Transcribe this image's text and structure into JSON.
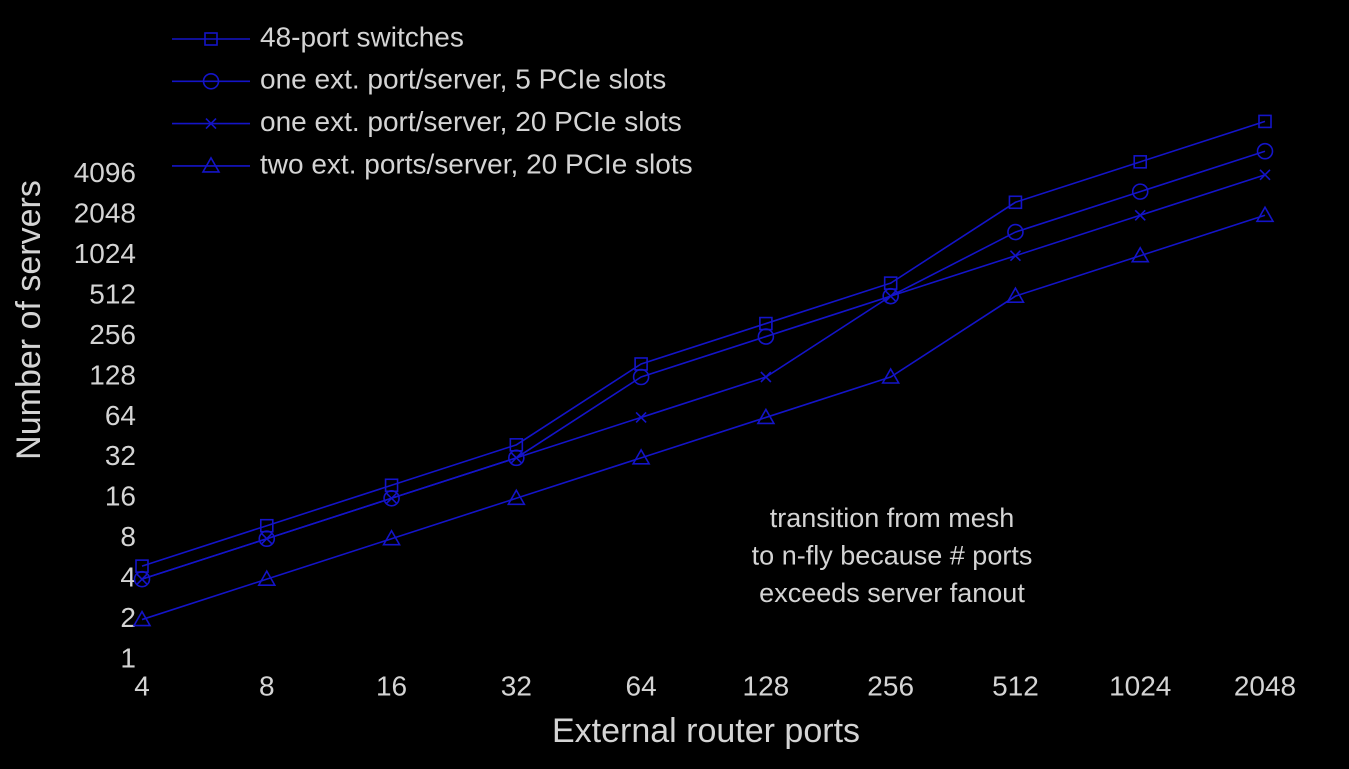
{
  "chart_data": {
    "type": "line",
    "xlabel": "External router ports",
    "ylabel": "Number of servers",
    "x": [
      4,
      8,
      16,
      32,
      64,
      128,
      256,
      512,
      1024,
      2048
    ],
    "xscale": "log",
    "yscale": "log",
    "log_base": 2,
    "xlim": [
      4,
      2048
    ],
    "ylim": [
      1,
      16384
    ],
    "xticks": [
      4,
      8,
      16,
      32,
      64,
      128,
      256,
      512,
      1024,
      2048
    ],
    "yticks": [
      1,
      2,
      4,
      8,
      16,
      32,
      64,
      128,
      256,
      512,
      1024,
      2048,
      4096
    ],
    "grid": false,
    "legend_position": "upper-left",
    "series": [
      {
        "name": "48-port switches",
        "color": "#1414c8",
        "marker": "square",
        "values": [
          5,
          10,
          20,
          40,
          160,
          320,
          640,
          2560,
          5120,
          10240
        ]
      },
      {
        "name": "one ext. port/server, 5 PCIe slots",
        "color": "#1414c8",
        "marker": "circle",
        "values": [
          4,
          8,
          16,
          32,
          128,
          256,
          512,
          1536,
          3072,
          6144
        ]
      },
      {
        "name": "one ext. port/server, 20 PCIe slots",
        "color": "#1414c8",
        "marker": "x",
        "values": [
          4,
          8,
          16,
          32,
          64,
          128,
          512,
          1024,
          2048,
          4096
        ]
      },
      {
        "name": "two ext. ports/server, 20 PCIe slots",
        "color": "#1414c8",
        "marker": "triangle",
        "values": [
          2,
          4,
          8,
          16,
          32,
          64,
          128,
          512,
          1024,
          2048
        ]
      }
    ],
    "annotation": [
      "transition from mesh",
      "to n-fly because # ports",
      "exceeds server fanout"
    ]
  }
}
